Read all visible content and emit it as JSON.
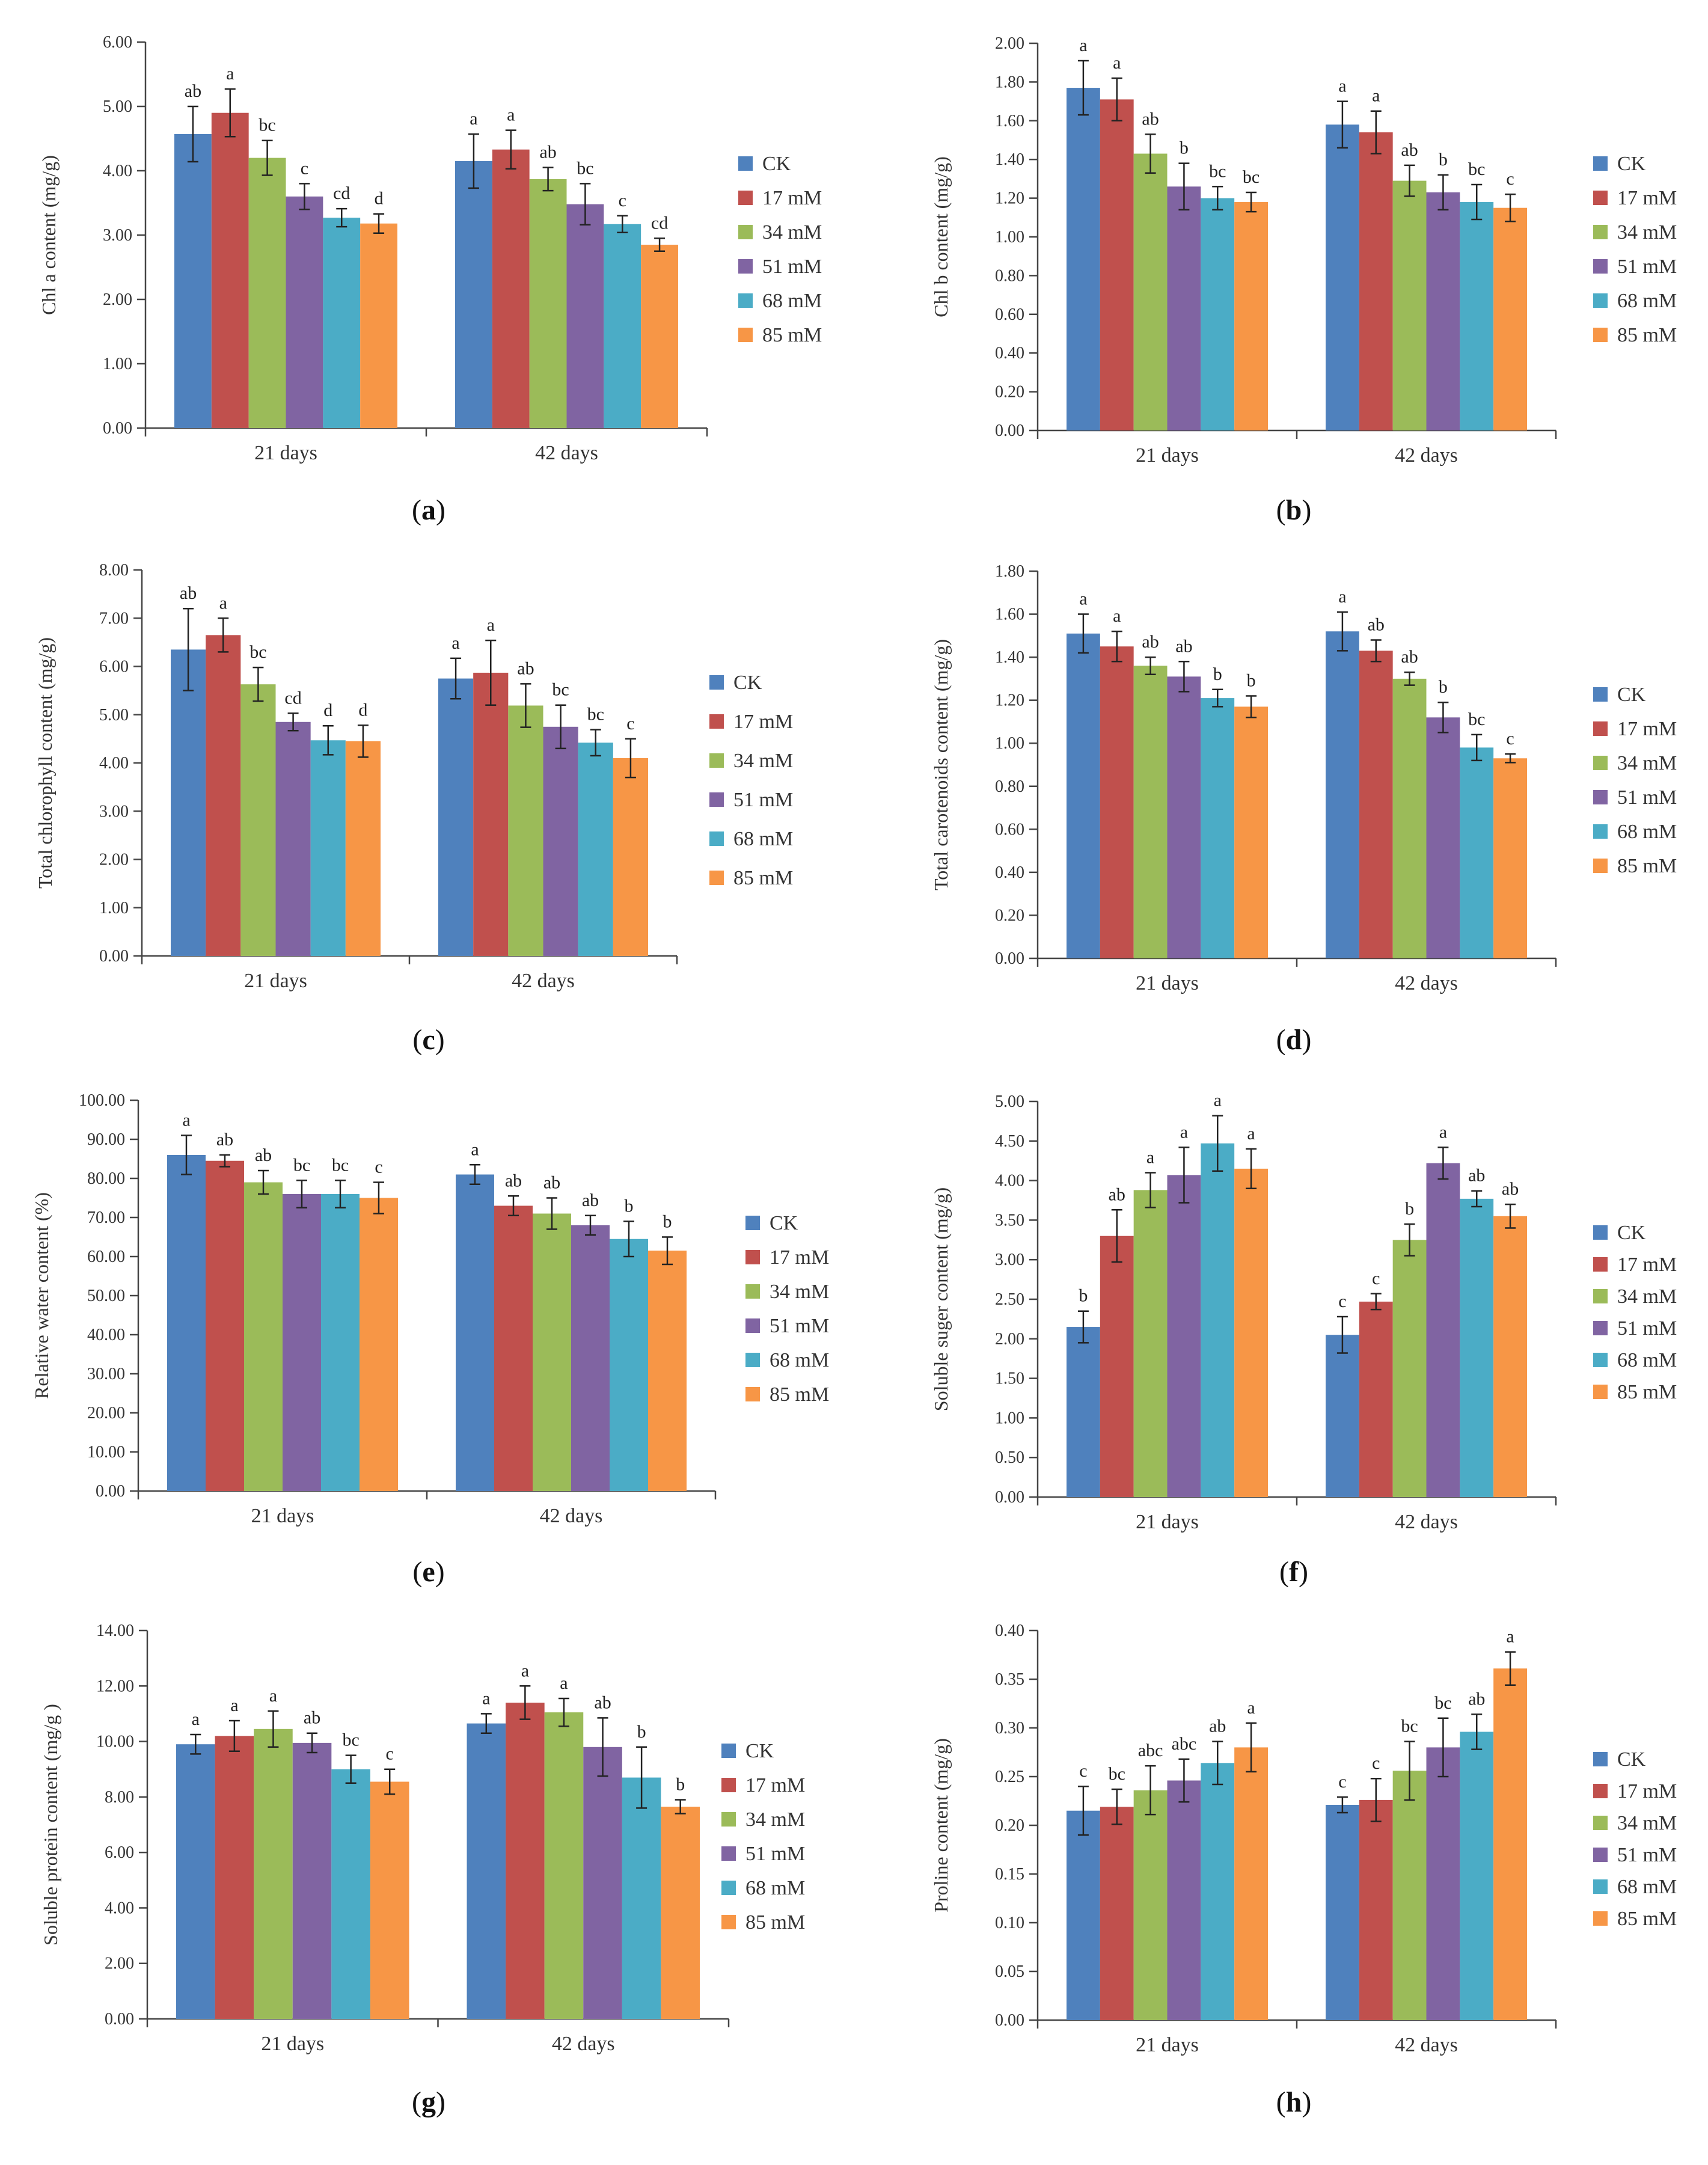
{
  "legend_labels": [
    "CK",
    "17 mM",
    "34 mM",
    "51 mM",
    "68 mM",
    "85 mM"
  ],
  "series_colors": [
    "#4F81BD",
    "#C0504D",
    "#9BBB59",
    "#8064A2",
    "#4BACC6",
    "#F79646"
  ],
  "categories": [
    "21 days",
    "42 days"
  ],
  "chart_data": [
    {
      "panel": "(a)",
      "type": "bar",
      "ylabel": "Chl a content (mg/g)",
      "ylim": [
        0,
        6
      ],
      "ytick_step": 1,
      "ytick_decimals": 2,
      "categories": [
        "21 days",
        "42 days"
      ],
      "series": [
        {
          "name": "CK",
          "values": [
            4.57,
            4.15
          ],
          "errors": [
            0.43,
            0.42
          ],
          "letters": [
            "ab",
            "a"
          ]
        },
        {
          "name": "17 mM",
          "values": [
            4.9,
            4.33
          ],
          "errors": [
            0.37,
            0.3
          ],
          "letters": [
            "a",
            "a"
          ]
        },
        {
          "name": "34 mM",
          "values": [
            4.2,
            3.87
          ],
          "errors": [
            0.27,
            0.18
          ],
          "letters": [
            "bc",
            "ab"
          ]
        },
        {
          "name": "51 mM",
          "values": [
            3.6,
            3.48
          ],
          "errors": [
            0.2,
            0.32
          ],
          "letters": [
            "c",
            "bc"
          ]
        },
        {
          "name": "68 mM",
          "values": [
            3.27,
            3.17
          ],
          "errors": [
            0.14,
            0.13
          ],
          "letters": [
            "cd",
            "c"
          ]
        },
        {
          "name": "85 mM",
          "values": [
            3.18,
            2.85
          ],
          "errors": [
            0.15,
            0.1
          ],
          "letters": [
            "d",
            "cd"
          ]
        }
      ]
    },
    {
      "panel": "(b)",
      "type": "bar",
      "ylabel": "Chl b content (mg/g)",
      "ylim": [
        0,
        2
      ],
      "ytick_step": 0.2,
      "ytick_decimals": 2,
      "categories": [
        "21 days",
        "42 days"
      ],
      "series": [
        {
          "name": "CK",
          "values": [
            1.77,
            1.58
          ],
          "errors": [
            0.14,
            0.12
          ],
          "letters": [
            "a",
            "a"
          ]
        },
        {
          "name": "17 mM",
          "values": [
            1.71,
            1.54
          ],
          "errors": [
            0.11,
            0.11
          ],
          "letters": [
            "a",
            "a"
          ]
        },
        {
          "name": "34 mM",
          "values": [
            1.43,
            1.29
          ],
          "errors": [
            0.1,
            0.08
          ],
          "letters": [
            "ab",
            "ab"
          ]
        },
        {
          "name": "51 mM",
          "values": [
            1.26,
            1.23
          ],
          "errors": [
            0.12,
            0.09
          ],
          "letters": [
            "b",
            "b"
          ]
        },
        {
          "name": "68 mM",
          "values": [
            1.2,
            1.18
          ],
          "errors": [
            0.06,
            0.09
          ],
          "letters": [
            "bc",
            "bc"
          ]
        },
        {
          "name": "85 mM",
          "values": [
            1.18,
            1.15
          ],
          "errors": [
            0.05,
            0.07
          ],
          "letters": [
            "bc",
            "c"
          ]
        }
      ]
    },
    {
      "panel": "(c)",
      "type": "bar",
      "ylabel": "Total chlorophyll content (mg/g)",
      "ylim": [
        0,
        8
      ],
      "ytick_step": 1,
      "ytick_decimals": 2,
      "categories": [
        "21 days",
        "42 days"
      ],
      "series": [
        {
          "name": "CK",
          "values": [
            6.35,
            5.75
          ],
          "errors": [
            0.85,
            0.42
          ],
          "letters": [
            "ab",
            "a"
          ]
        },
        {
          "name": "17 mM",
          "values": [
            6.65,
            5.87
          ],
          "errors": [
            0.35,
            0.67
          ],
          "letters": [
            "a",
            "a"
          ]
        },
        {
          "name": "34 mM",
          "values": [
            5.63,
            5.19
          ],
          "errors": [
            0.35,
            0.45
          ],
          "letters": [
            "bc",
            "ab"
          ]
        },
        {
          "name": "51 mM",
          "values": [
            4.85,
            4.75
          ],
          "errors": [
            0.18,
            0.45
          ],
          "letters": [
            "cd",
            "bc"
          ]
        },
        {
          "name": "68 mM",
          "values": [
            4.47,
            4.42
          ],
          "errors": [
            0.3,
            0.27
          ],
          "letters": [
            "d",
            "bc"
          ]
        },
        {
          "name": "85 mM",
          "values": [
            4.45,
            4.1
          ],
          "errors": [
            0.33,
            0.4
          ],
          "letters": [
            "d",
            "c"
          ]
        }
      ]
    },
    {
      "panel": "(d)",
      "type": "bar",
      "ylabel": "Total carotenoids content (mg/g)",
      "ylim": [
        0,
        1.8
      ],
      "ytick_step": 0.2,
      "ytick_decimals": 2,
      "categories": [
        "21 days",
        "42 days"
      ],
      "series": [
        {
          "name": "CK",
          "values": [
            1.51,
            1.52
          ],
          "errors": [
            0.09,
            0.09
          ],
          "letters": [
            "a",
            "a"
          ]
        },
        {
          "name": "17 mM",
          "values": [
            1.45,
            1.43
          ],
          "errors": [
            0.07,
            0.05
          ],
          "letters": [
            "a",
            "ab"
          ]
        },
        {
          "name": "34 mM",
          "values": [
            1.36,
            1.3
          ],
          "errors": [
            0.04,
            0.03
          ],
          "letters": [
            "ab",
            "ab"
          ]
        },
        {
          "name": "51 mM",
          "values": [
            1.31,
            1.12
          ],
          "errors": [
            0.07,
            0.07
          ],
          "letters": [
            "ab",
            "b"
          ]
        },
        {
          "name": "68 mM",
          "values": [
            1.21,
            0.98
          ],
          "errors": [
            0.04,
            0.06
          ],
          "letters": [
            "b",
            "bc"
          ]
        },
        {
          "name": "85 mM",
          "values": [
            1.17,
            0.93
          ],
          "errors": [
            0.05,
            0.02
          ],
          "letters": [
            "b",
            "c"
          ]
        }
      ]
    },
    {
      "panel": "(e)",
      "type": "bar",
      "ylabel": "Relative water content (%)",
      "ylim": [
        0,
        100
      ],
      "ytick_step": 10,
      "ytick_decimals": 2,
      "categories": [
        "21 days",
        "42 days"
      ],
      "series": [
        {
          "name": "CK",
          "values": [
            86.0,
            81.0
          ],
          "errors": [
            5.0,
            2.5
          ],
          "letters": [
            "a",
            "a"
          ]
        },
        {
          "name": "17 mM",
          "values": [
            84.5,
            73.0
          ],
          "errors": [
            1.5,
            2.5
          ],
          "letters": [
            "ab",
            "ab"
          ]
        },
        {
          "name": "34 mM",
          "values": [
            79.0,
            71.0
          ],
          "errors": [
            3.0,
            4.0
          ],
          "letters": [
            "ab",
            "ab"
          ]
        },
        {
          "name": "51 mM",
          "values": [
            76.0,
            68.0
          ],
          "errors": [
            3.5,
            2.5
          ],
          "letters": [
            "bc",
            "ab"
          ]
        },
        {
          "name": "68 mM",
          "values": [
            76.0,
            64.5
          ],
          "errors": [
            3.5,
            4.5
          ],
          "letters": [
            "bc",
            "b"
          ]
        },
        {
          "name": "85 mM",
          "values": [
            75.0,
            61.5
          ],
          "errors": [
            4.0,
            3.5
          ],
          "letters": [
            "c",
            "b"
          ]
        }
      ]
    },
    {
      "panel": "(f)",
      "type": "bar",
      "ylabel": "Soluble suger content (mg/g)",
      "ylim": [
        0,
        5
      ],
      "ytick_step": 0.5,
      "ytick_decimals": 2,
      "categories": [
        "21 days",
        "42 days"
      ],
      "series": [
        {
          "name": "CK",
          "values": [
            2.15,
            2.05
          ],
          "errors": [
            0.2,
            0.23
          ],
          "letters": [
            "b",
            "c"
          ]
        },
        {
          "name": "17 mM",
          "values": [
            3.3,
            2.47
          ],
          "errors": [
            0.33,
            0.1
          ],
          "letters": [
            "ab",
            "c"
          ]
        },
        {
          "name": "34 mM",
          "values": [
            3.88,
            3.25
          ],
          "errors": [
            0.22,
            0.2
          ],
          "letters": [
            "a",
            "b"
          ]
        },
        {
          "name": "51 mM",
          "values": [
            4.07,
            4.22
          ],
          "errors": [
            0.35,
            0.2
          ],
          "letters": [
            "a",
            "a"
          ]
        },
        {
          "name": "68 mM",
          "values": [
            4.47,
            3.77
          ],
          "errors": [
            0.35,
            0.1
          ],
          "letters": [
            "a",
            "ab"
          ]
        },
        {
          "name": "85 mM",
          "values": [
            4.15,
            3.55
          ],
          "errors": [
            0.25,
            0.15
          ],
          "letters": [
            "a",
            "ab"
          ]
        }
      ]
    },
    {
      "panel": "(g)",
      "type": "bar",
      "ylabel": "Soluble protein content (mg/g )",
      "ylim": [
        0,
        14
      ],
      "ytick_step": 2,
      "ytick_decimals": 2,
      "categories": [
        "21 days",
        "42 days"
      ],
      "series": [
        {
          "name": "CK",
          "values": [
            9.9,
            10.65
          ],
          "errors": [
            0.35,
            0.35
          ],
          "letters": [
            "a",
            "a"
          ]
        },
        {
          "name": "17 mM",
          "values": [
            10.2,
            11.4
          ],
          "errors": [
            0.55,
            0.6
          ],
          "letters": [
            "a",
            "a"
          ]
        },
        {
          "name": "34 mM",
          "values": [
            10.45,
            11.05
          ],
          "errors": [
            0.65,
            0.5
          ],
          "letters": [
            "a",
            "a"
          ]
        },
        {
          "name": "51 mM",
          "values": [
            9.95,
            9.8
          ],
          "errors": [
            0.35,
            1.05
          ],
          "letters": [
            "ab",
            "ab"
          ]
        },
        {
          "name": "68 mM",
          "values": [
            9.0,
            8.7
          ],
          "errors": [
            0.5,
            1.1
          ],
          "letters": [
            "bc",
            "b"
          ]
        },
        {
          "name": "85 mM",
          "values": [
            8.55,
            7.65
          ],
          "errors": [
            0.45,
            0.25
          ],
          "letters": [
            "c",
            "b"
          ]
        }
      ]
    },
    {
      "panel": "(h)",
      "type": "bar",
      "ylabel": "Proline content (mg/g)",
      "ylim": [
        0,
        0.4
      ],
      "ytick_step": 0.05,
      "ytick_decimals": 2,
      "categories": [
        "21 days",
        "42 days"
      ],
      "series": [
        {
          "name": "CK",
          "values": [
            0.215,
            0.221
          ],
          "errors": [
            0.025,
            0.008
          ],
          "letters": [
            "c",
            "c"
          ]
        },
        {
          "name": "17 mM",
          "values": [
            0.219,
            0.226
          ],
          "errors": [
            0.018,
            0.022
          ],
          "letters": [
            "bc",
            "c"
          ]
        },
        {
          "name": "34 mM",
          "values": [
            0.236,
            0.256
          ],
          "errors": [
            0.025,
            0.03
          ],
          "letters": [
            "abc",
            "bc"
          ]
        },
        {
          "name": "51 mM",
          "values": [
            0.246,
            0.28
          ],
          "errors": [
            0.022,
            0.03
          ],
          "letters": [
            "abc",
            "bc"
          ]
        },
        {
          "name": "68 mM",
          "values": [
            0.264,
            0.296
          ],
          "errors": [
            0.022,
            0.018
          ],
          "letters": [
            "ab",
            "ab"
          ]
        },
        {
          "name": "85 mM",
          "values": [
            0.28,
            0.361
          ],
          "errors": [
            0.025,
            0.017
          ],
          "letters": [
            "a",
            "a"
          ]
        }
      ]
    }
  ]
}
